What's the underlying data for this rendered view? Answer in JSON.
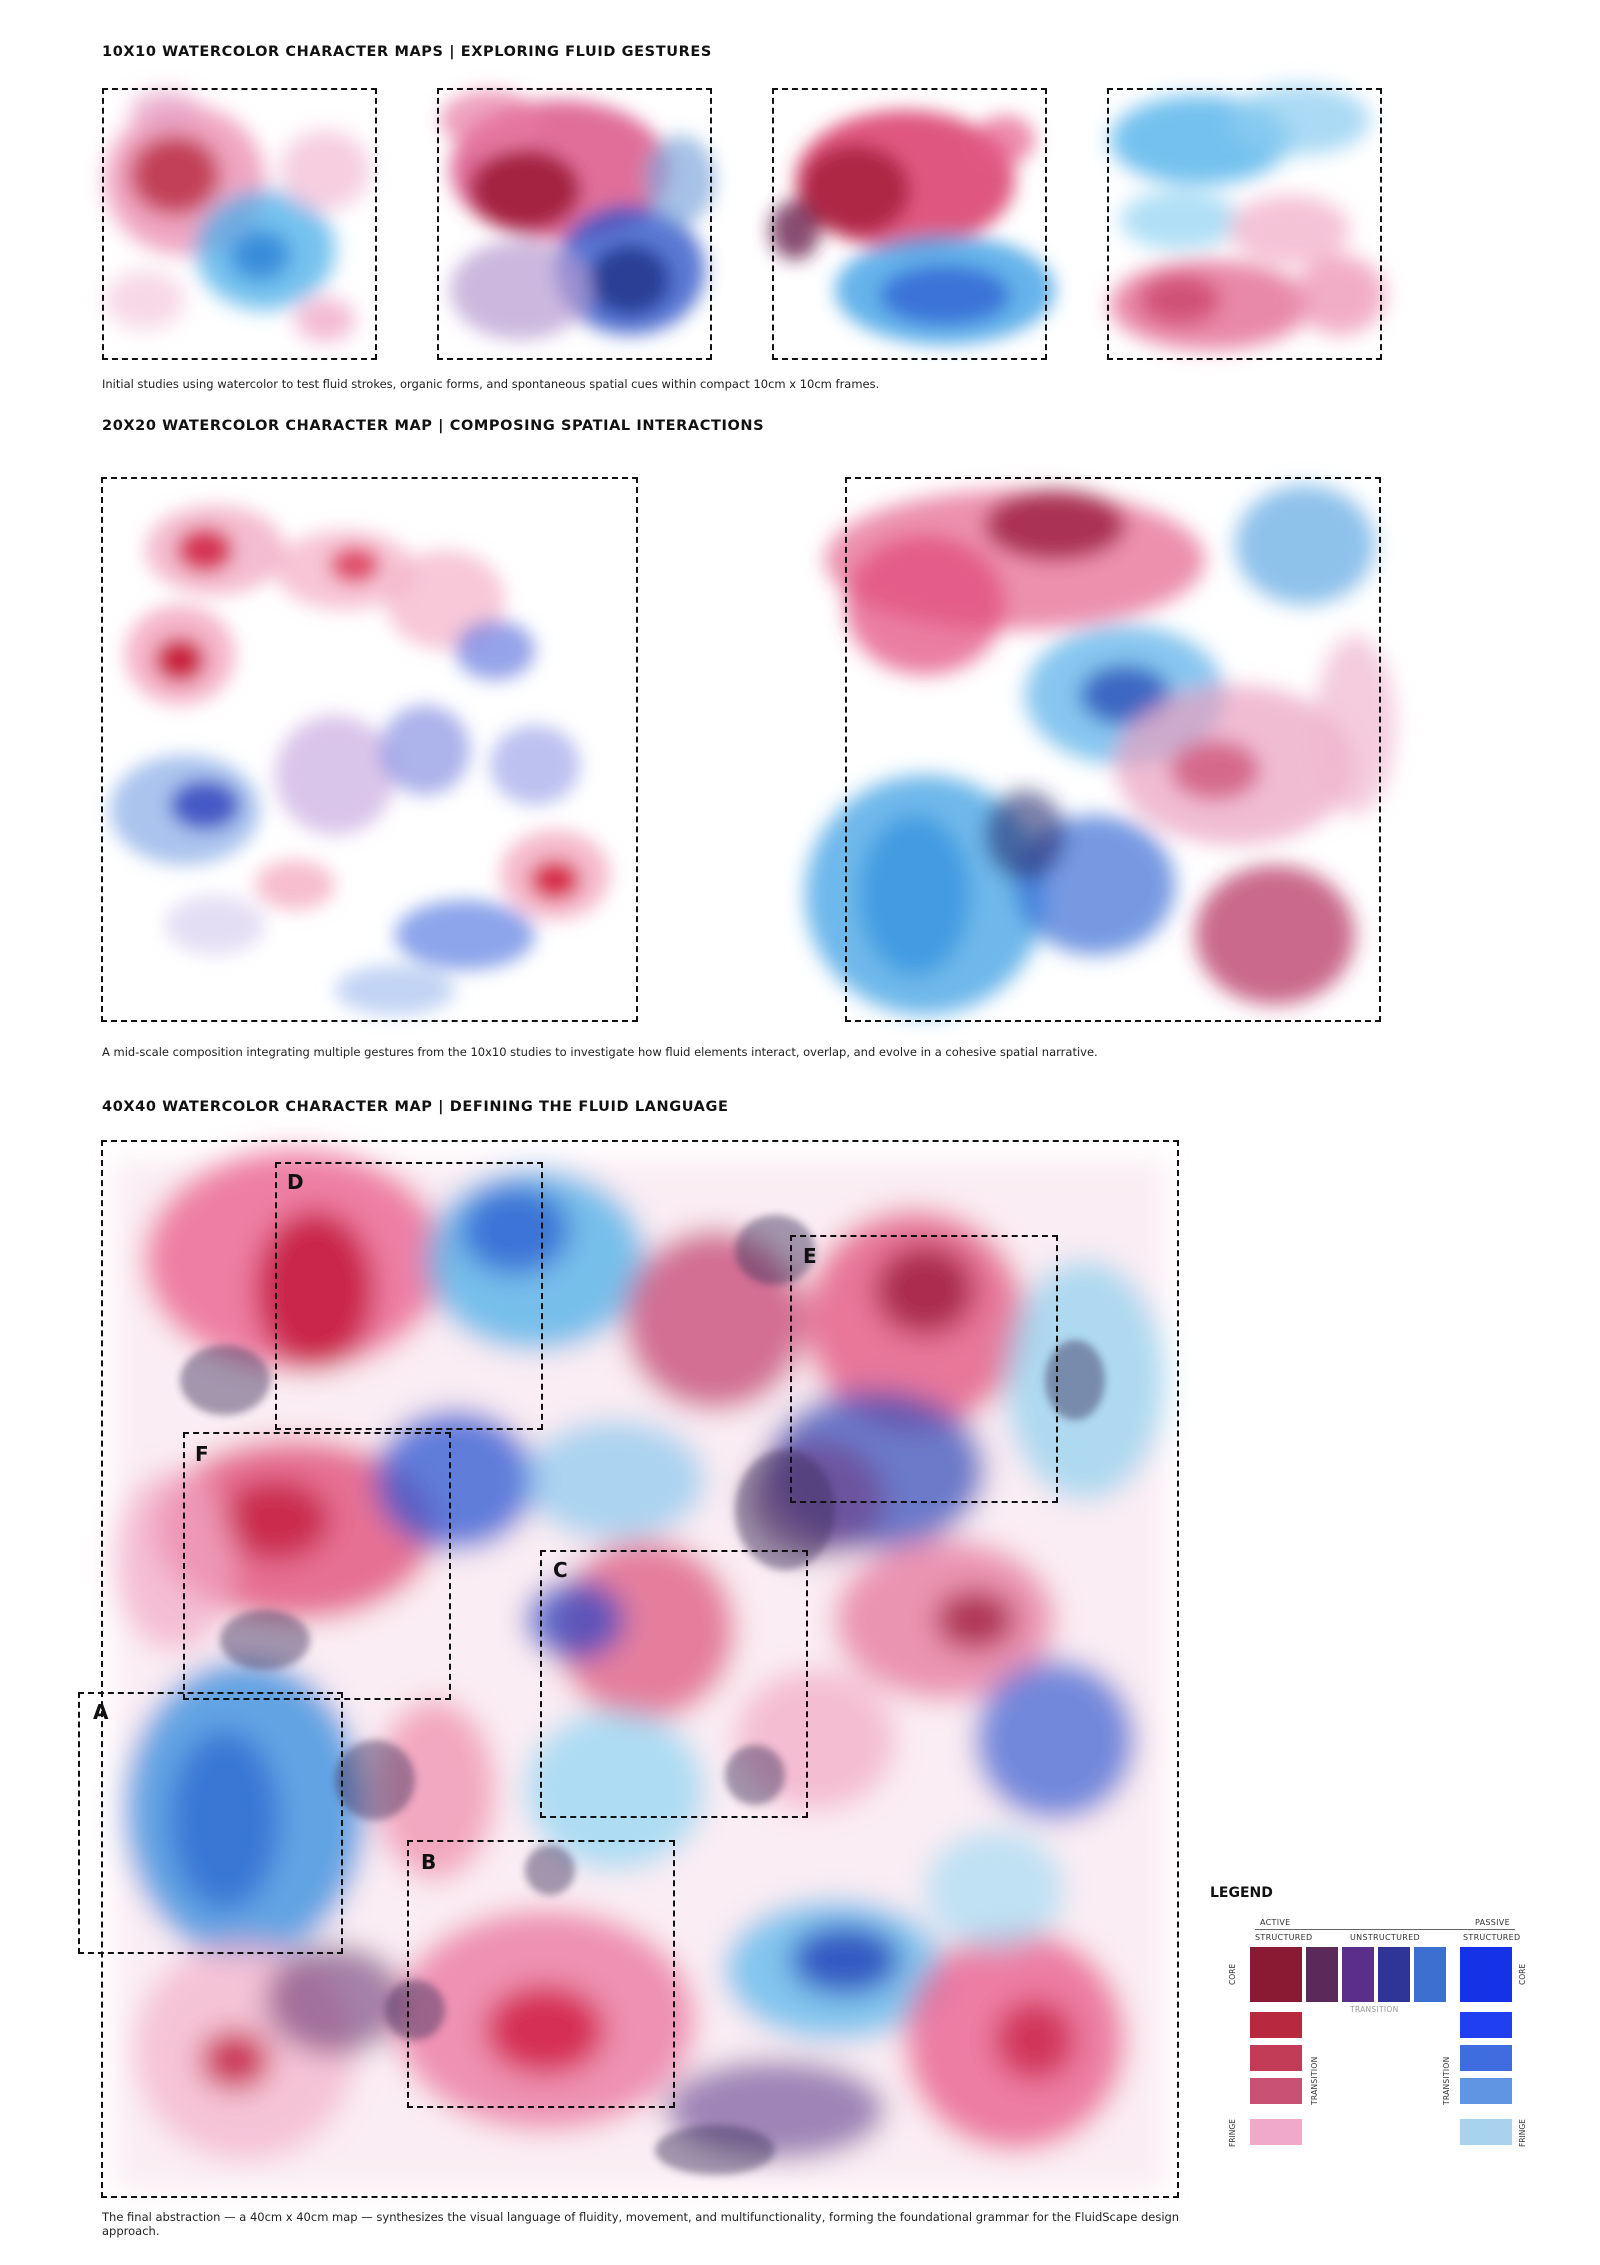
{
  "section1": {
    "heading": "10X10 WATERCOLOR CHARACTER MAPS | EXPLORING FLUID GESTURES",
    "caption": "Initial studies using watercolor to test fluid strokes, organic forms, and spontaneous spatial cues within compact 10cm x 10cm frames."
  },
  "section2": {
    "heading": "20X20 WATERCOLOR CHARACTER MAP | COMPOSING SPATIAL INTERACTIONS",
    "caption": "A mid-scale composition integrating multiple gestures from the 10x10 studies to investigate how fluid elements interact, overlap, and evolve in a cohesive spatial narrative."
  },
  "section3": {
    "heading": "40X40 WATERCOLOR CHARACTER MAP | DEFINING THE FLUID LANGUAGE",
    "caption": "The final abstraction — a 40cm x 40cm map — synthesizes the visual language of fluidity, movement, and multifunctionality, forming the foundational grammar for the FluidScape design approach.",
    "zones": [
      "A",
      "B",
      "C",
      "D",
      "E",
      "F"
    ]
  },
  "legend": {
    "title": "LEGEND",
    "active": "ACTIVE",
    "passive": "PASSIVE",
    "structured_left": "STRUCTURED",
    "unstructured": "UNSTRUCTURED",
    "structured_right": "STRUCTURED",
    "core_left": "CORE",
    "core_right": "CORE",
    "transition_center": "TRANSITION",
    "transition_left": "TRANSITION",
    "transition_right": "TRANSITION",
    "fringe_left": "FRINGE",
    "fringe_right": "FRINGE",
    "colors": {
      "core_row": [
        "#8a1a34",
        "#5c2a5a",
        "#5a2f8c",
        "#2e3596",
        "#3d6fd0",
        "#1632e6"
      ],
      "left_column": [
        "#b8293f",
        "#c23b57",
        "#c95173",
        "#f0a9c9"
      ],
      "right_column": [
        "#1f3ff0",
        "#3f6de0",
        "#5f95e2",
        "#a9d2ef"
      ]
    }
  },
  "palette": {
    "crimson": "#c8103a",
    "magenta": "#d84a7f",
    "pink": "#ec8fb2",
    "cyan": "#48aee8",
    "blue": "#1f3fd0",
    "navy": "#1a1f6a",
    "plum": "#7a2d6a"
  }
}
